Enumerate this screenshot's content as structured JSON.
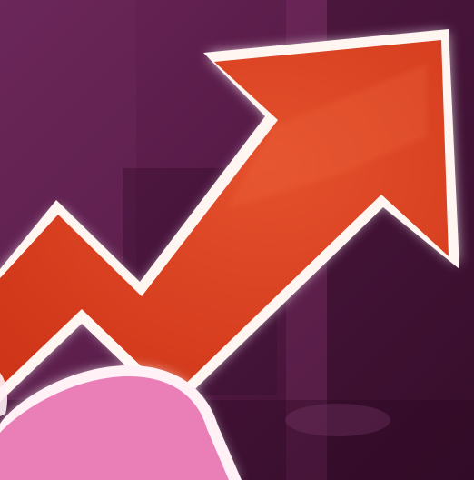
{
  "scene": {
    "subject": "trending-up-arrow-icon",
    "colors": {
      "background_dark": "#3a1030",
      "background_mid": "#5a1c48",
      "background_light": "#7a2f62",
      "arrow_fill": "#d63a1c",
      "arrow_fill_highlight": "#e4502c",
      "arrow_outline": "#fff6f2",
      "glow": "#ffffff",
      "blob_fill": "#ea7fb8",
      "blob_outline": "#fff1f6"
    }
  }
}
